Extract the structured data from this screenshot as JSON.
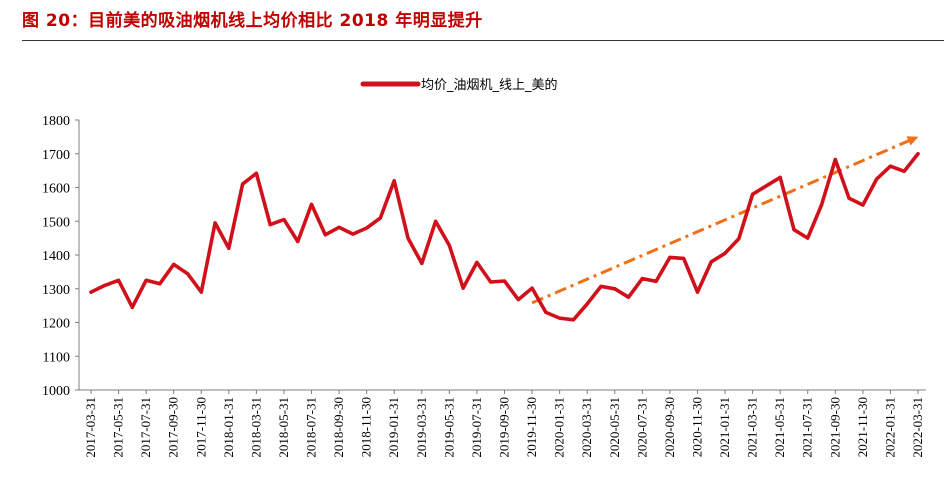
{
  "figure": {
    "title": "图 20：目前美的吸油烟机线上均价相比 2018 年明显提升"
  },
  "colors": {
    "title": "#c00000",
    "series": "#d0101a",
    "trend": "#f07018"
  },
  "chart_data": {
    "type": "line",
    "title": "",
    "xlabel": "",
    "ylabel": "",
    "ylim": [
      1000,
      1800
    ],
    "yticks": [
      1000,
      1100,
      1200,
      1300,
      1400,
      1500,
      1600,
      1700,
      1800
    ],
    "grid": false,
    "legend_position": "top-center",
    "x_tick_labels": [
      "2017-03-31",
      "2017-05-31",
      "2017-07-31",
      "2017-09-30",
      "2017-11-30",
      "2018-01-31",
      "2018-03-31",
      "2018-05-31",
      "2018-07-31",
      "2018-09-30",
      "2018-11-30",
      "2019-01-31",
      "2019-03-31",
      "2019-05-31",
      "2019-07-31",
      "2019-09-30",
      "2019-11-30",
      "2020-01-31",
      "2020-03-31",
      "2020-05-31",
      "2020-07-31",
      "2020-09-30",
      "2020-11-30",
      "2021-01-31",
      "2021-03-31",
      "2021-05-31",
      "2021-07-31",
      "2021-09-30",
      "2021-11-30",
      "2022-01-31",
      "2022-03-31"
    ],
    "series": [
      {
        "name": "均价_油烟机_线上_美的",
        "values": [
          1290,
          1310,
          1325,
          1245,
          1325,
          1315,
          1372,
          1345,
          1290,
          1495,
          1420,
          1610,
          1642,
          1490,
          1505,
          1440,
          1550,
          1460,
          1482,
          1462,
          1480,
          1510,
          1620,
          1450,
          1375,
          1500,
          1428,
          1302,
          1378,
          1320,
          1323,
          1268,
          1302,
          1230,
          1213,
          1208,
          1255,
          1307,
          1300,
          1275,
          1330,
          1322,
          1393,
          1390,
          1290,
          1380,
          1405,
          1448,
          1580,
          1605,
          1630,
          1475,
          1450,
          1548,
          1683,
          1568,
          1548,
          1625,
          1663,
          1648,
          1700
        ]
      }
    ],
    "trend_annotation": {
      "type": "arrow",
      "x_start": "2019-11-30",
      "y_start": 1258,
      "x_end": "2022-03-31",
      "y_end": 1745
    }
  }
}
